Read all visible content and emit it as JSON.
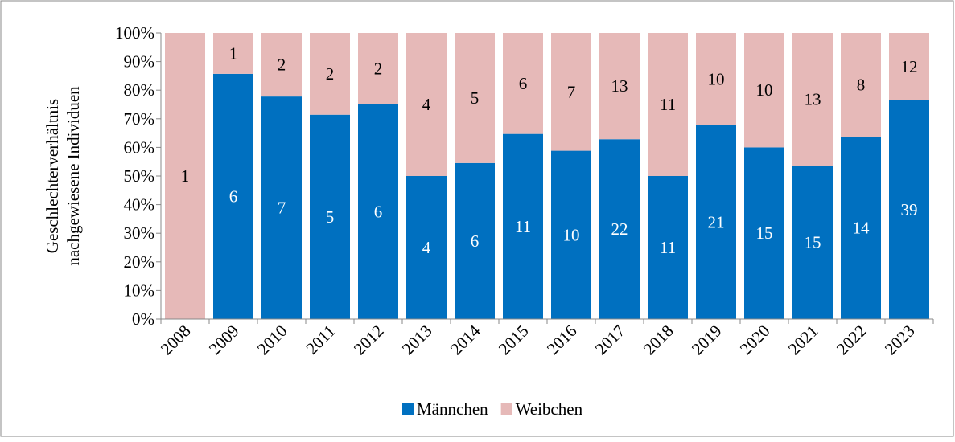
{
  "chart_data": {
    "type": "bar",
    "stacking": "percent",
    "y_label": [
      "Geschlechterverhältnis",
      "nachgewiesene Individuen"
    ],
    "categories": [
      "2008",
      "2009",
      "2010",
      "2011",
      "2012",
      "2013",
      "2014",
      "2015",
      "2016",
      "2017",
      "2018",
      "2019",
      "2020",
      "2021",
      "2022",
      "2023"
    ],
    "series": [
      {
        "name": "Männchen",
        "color": "#0070c0",
        "label_color": "#ffffff",
        "values": [
          0,
          6,
          7,
          5,
          6,
          4,
          6,
          11,
          10,
          22,
          11,
          21,
          15,
          15,
          14,
          39
        ]
      },
      {
        "name": "Weibchen",
        "color": "#e6b9b8",
        "label_color": "#000000",
        "values": [
          1,
          1,
          2,
          2,
          2,
          4,
          5,
          6,
          7,
          13,
          11,
          10,
          10,
          13,
          8,
          12
        ]
      }
    ],
    "ylim": [
      0,
      100
    ],
    "yticks": [
      {
        "value": 0,
        "label": "0%"
      },
      {
        "value": 10,
        "label": "10%"
      },
      {
        "value": 20,
        "label": "20%"
      },
      {
        "value": 30,
        "label": "30%"
      },
      {
        "value": 40,
        "label": "40%"
      },
      {
        "value": 50,
        "label": "50%"
      },
      {
        "value": 60,
        "label": "60%"
      },
      {
        "value": 70,
        "label": "70%"
      },
      {
        "value": 80,
        "label": "80%"
      },
      {
        "value": 90,
        "label": "90%"
      },
      {
        "value": 100,
        "label": "100%"
      }
    ],
    "legend": "bottom"
  }
}
